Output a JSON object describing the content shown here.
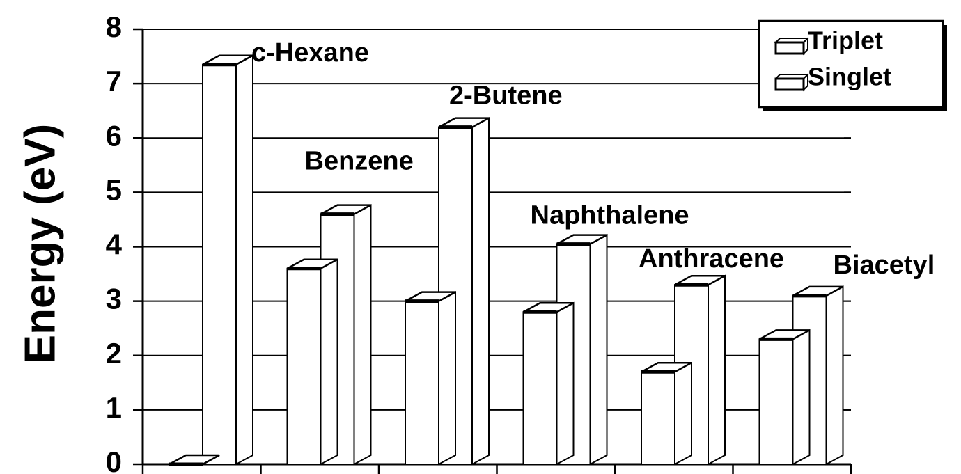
{
  "chart_data": {
    "type": "bar3d",
    "y_label": "Energy (eV)",
    "categories": [
      "c-Hexane",
      "Benzene",
      "2-Butene",
      "Naphthalene",
      "Anthracene",
      "Biacetyl"
    ],
    "series": [
      {
        "name": "Triplet",
        "color": "#ffffff",
        "values": [
          0,
          3.6,
          3.0,
          2.8,
          1.7,
          2.3
        ]
      },
      {
        "name": "Singlet",
        "color": "#ffffff",
        "values": [
          7.35,
          4.6,
          6.2,
          4.05,
          3.3,
          3.1
        ]
      }
    ],
    "ylim": [
      0,
      8
    ],
    "yticks": [
      0,
      1,
      2,
      3,
      4,
      5,
      6,
      7,
      8
    ],
    "grid": true,
    "legend": "top-right"
  }
}
